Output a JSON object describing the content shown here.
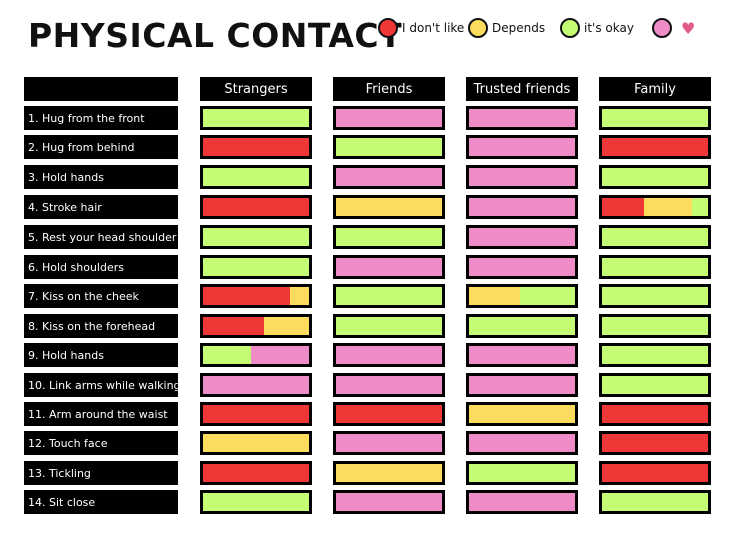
{
  "title": "PHYSICAL CONTACT",
  "colors": {
    "red": "#f03737",
    "yellow": "#fcdc5c",
    "green": "#c4fc74",
    "pink": "#ef8cc8"
  },
  "legend": [
    {
      "color": "red",
      "label": "I don't like"
    },
    {
      "color": "yellow",
      "label": "Depends"
    },
    {
      "color": "green",
      "label": "it's okay"
    },
    {
      "color": "pink",
      "label": "",
      "icon": "heart-icon"
    }
  ],
  "columns": [
    "Strangers",
    "Friends",
    "Trusted friends",
    "Family"
  ],
  "rows": [
    {
      "label": "1. Hug from the front",
      "cells": [
        [
          [
            "green",
            1
          ]
        ],
        [
          [
            "pink",
            1
          ]
        ],
        [
          [
            "pink",
            1
          ]
        ],
        [
          [
            "green",
            1
          ]
        ]
      ]
    },
    {
      "label": "2. Hug from behind",
      "cells": [
        [
          [
            "red",
            1
          ]
        ],
        [
          [
            "green",
            1
          ]
        ],
        [
          [
            "pink",
            1
          ]
        ],
        [
          [
            "red",
            1
          ]
        ]
      ]
    },
    {
      "label": "3. Hold hands",
      "cells": [
        [
          [
            "green",
            1
          ]
        ],
        [
          [
            "pink",
            1
          ]
        ],
        [
          [
            "pink",
            1
          ]
        ],
        [
          [
            "green",
            1
          ]
        ]
      ]
    },
    {
      "label": "4. Stroke hair",
      "cells": [
        [
          [
            "red",
            1
          ]
        ],
        [
          [
            "yellow",
            1
          ]
        ],
        [
          [
            "pink",
            1
          ]
        ],
        [
          [
            "red",
            0.4
          ],
          [
            "yellow",
            0.45
          ],
          [
            "green",
            0.15
          ]
        ]
      ]
    },
    {
      "label": "5. Rest your head shoulder",
      "cells": [
        [
          [
            "green",
            1
          ]
        ],
        [
          [
            "green",
            1
          ]
        ],
        [
          [
            "pink",
            1
          ]
        ],
        [
          [
            "green",
            1
          ]
        ]
      ]
    },
    {
      "label": "6. Hold shoulders",
      "cells": [
        [
          [
            "green",
            1
          ]
        ],
        [
          [
            "pink",
            1
          ]
        ],
        [
          [
            "pink",
            1
          ]
        ],
        [
          [
            "green",
            1
          ]
        ]
      ]
    },
    {
      "label": "7. Kiss on the cheek",
      "cells": [
        [
          [
            "red",
            0.82
          ],
          [
            "yellow",
            0.18
          ]
        ],
        [
          [
            "green",
            1
          ]
        ],
        [
          [
            "yellow",
            0.48
          ],
          [
            "green",
            0.52
          ]
        ],
        [
          [
            "green",
            1
          ]
        ]
      ]
    },
    {
      "label": "8. Kiss on the forehead",
      "cells": [
        [
          [
            "red",
            0.58
          ],
          [
            "yellow",
            0.42
          ]
        ],
        [
          [
            "green",
            1
          ]
        ],
        [
          [
            "green",
            1
          ]
        ],
        [
          [
            "green",
            1
          ]
        ]
      ]
    },
    {
      "label": "9. Hold hands",
      "cells": [
        [
          [
            "green",
            0.45
          ],
          [
            "pink",
            0.55
          ]
        ],
        [
          [
            "pink",
            1
          ]
        ],
        [
          [
            "pink",
            1
          ]
        ],
        [
          [
            "green",
            1
          ]
        ]
      ]
    },
    {
      "label": "10. Link arms while walking",
      "cells": [
        [
          [
            "pink",
            1
          ]
        ],
        [
          [
            "pink",
            1
          ]
        ],
        [
          [
            "pink",
            1
          ]
        ],
        [
          [
            "green",
            1
          ]
        ]
      ]
    },
    {
      "label": "11. Arm around the waist",
      "cells": [
        [
          [
            "red",
            1
          ]
        ],
        [
          [
            "red",
            1
          ]
        ],
        [
          [
            "yellow",
            1
          ]
        ],
        [
          [
            "red",
            1
          ]
        ]
      ]
    },
    {
      "label": "12. Touch face",
      "cells": [
        [
          [
            "yellow",
            1
          ]
        ],
        [
          [
            "pink",
            1
          ]
        ],
        [
          [
            "pink",
            1
          ]
        ],
        [
          [
            "red",
            1
          ]
        ]
      ]
    },
    {
      "label": "13. Tickling",
      "cells": [
        [
          [
            "red",
            1
          ]
        ],
        [
          [
            "yellow",
            1
          ]
        ],
        [
          [
            "green",
            1
          ]
        ],
        [
          [
            "red",
            1
          ]
        ]
      ]
    },
    {
      "label": "14. Sit close",
      "cells": [
        [
          [
            "green",
            1
          ]
        ],
        [
          [
            "pink",
            1
          ]
        ],
        [
          [
            "pink",
            1
          ]
        ],
        [
          [
            "green",
            1
          ]
        ]
      ]
    }
  ]
}
